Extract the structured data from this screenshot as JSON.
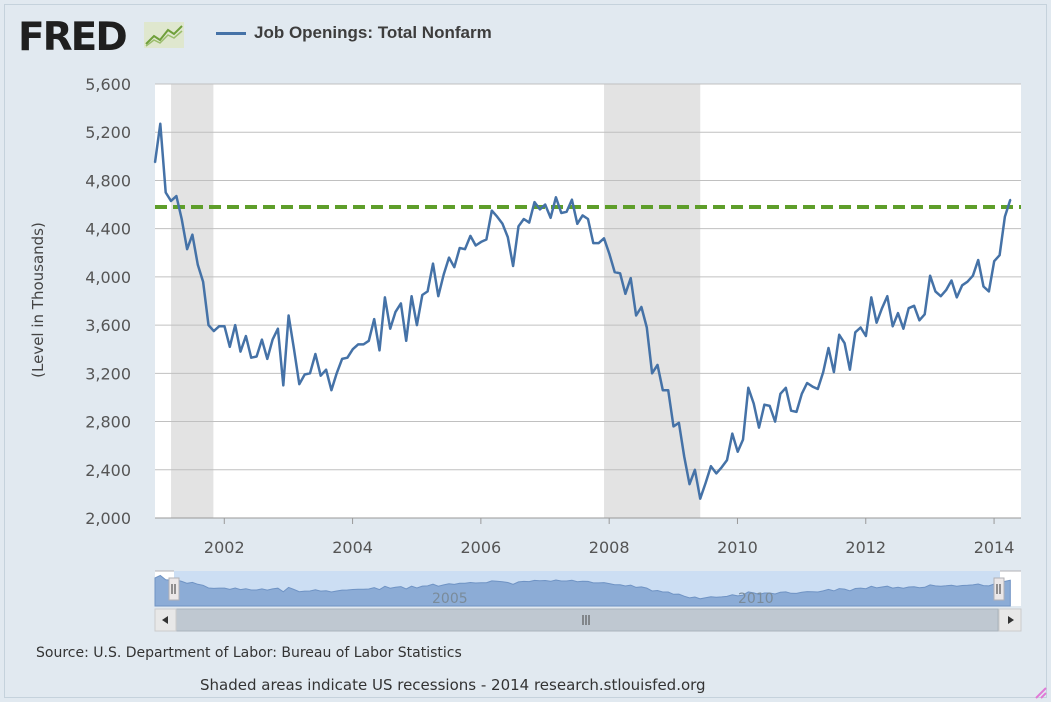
{
  "header": {
    "logo_text": "FRED",
    "legend_label": "Job Openings: Total Nonfarm"
  },
  "colors": {
    "series": "#4572a7",
    "reference_line": "#5e9e2a",
    "recession": "#e3e3e3",
    "navigator_fill": "#8cacd6",
    "navigator_mask": "#c6daf2"
  },
  "chart_data": {
    "type": "line",
    "title": "Job Openings: Total Nonfarm",
    "ylabel": "(Level in Thousands)",
    "xlabel": "",
    "ylim": [
      2000,
      5600
    ],
    "xlim": [
      2000.92,
      2014.42
    ],
    "grid": true,
    "yticks": [
      "2,000",
      "2,400",
      "2,800",
      "3,200",
      "3,600",
      "4,000",
      "4,400",
      "4,800",
      "5,200",
      "5,600"
    ],
    "ytick_values": [
      2000,
      2400,
      2800,
      3200,
      3600,
      4000,
      4400,
      4800,
      5200,
      5600
    ],
    "xticks": [
      "2002",
      "2004",
      "2006",
      "2008",
      "2010",
      "2012",
      "2014"
    ],
    "xtick_values": [
      2002,
      2004,
      2006,
      2008,
      2010,
      2012,
      2014
    ],
    "recessions": [
      [
        2001.17,
        2001.83
      ],
      [
        2007.92,
        2009.42
      ]
    ],
    "reference_line": {
      "value": 4580,
      "style": "dashed"
    },
    "series": [
      {
        "name": "Job Openings: Total Nonfarm",
        "start": 2000.92,
        "step": 0.08333,
        "values": [
          4950,
          5270,
          4700,
          4630,
          4670,
          4480,
          4230,
          4350,
          4100,
          3960,
          3600,
          3550,
          3590,
          3590,
          3420,
          3600,
          3380,
          3510,
          3330,
          3340,
          3480,
          3320,
          3480,
          3570,
          3100,
          3680,
          3400,
          3110,
          3190,
          3200,
          3360,
          3180,
          3230,
          3060,
          3200,
          3320,
          3330,
          3400,
          3440,
          3440,
          3470,
          3650,
          3390,
          3830,
          3570,
          3710,
          3780,
          3470,
          3840,
          3600,
          3850,
          3880,
          4110,
          3840,
          4020,
          4160,
          4080,
          4240,
          4230,
          4340,
          4260,
          4290,
          4310,
          4550,
          4500,
          4440,
          4330,
          4090,
          4420,
          4480,
          4450,
          4620,
          4560,
          4600,
          4490,
          4660,
          4530,
          4540,
          4640,
          4440,
          4510,
          4480,
          4280,
          4280,
          4320,
          4190,
          4040,
          4030,
          3860,
          3990,
          3680,
          3750,
          3580,
          3200,
          3270,
          3060,
          3060,
          2760,
          2790,
          2510,
          2280,
          2400,
          2160,
          2290,
          2430,
          2370,
          2420,
          2480,
          2700,
          2550,
          2650,
          3080,
          2950,
          2750,
          2940,
          2930,
          2800,
          3030,
          3080,
          2890,
          2880,
          3030,
          3120,
          3090,
          3070,
          3210,
          3410,
          3210,
          3520,
          3450,
          3230,
          3540,
          3580,
          3510,
          3830,
          3620,
          3740,
          3840,
          3590,
          3700,
          3570,
          3740,
          3760,
          3640,
          3690,
          4010,
          3880,
          3840,
          3890,
          3970,
          3830,
          3930,
          3960,
          4010,
          4140,
          3920,
          3880,
          4130,
          4180,
          4500,
          4640
        ]
      }
    ],
    "navigator_labels": [
      "2005",
      "2010"
    ]
  },
  "footer": {
    "source": "Source: U.S. Department of Labor: Bureau of Labor Statistics",
    "note": "Shaded areas indicate US recessions - 2014 research.stlouisfed.org"
  }
}
